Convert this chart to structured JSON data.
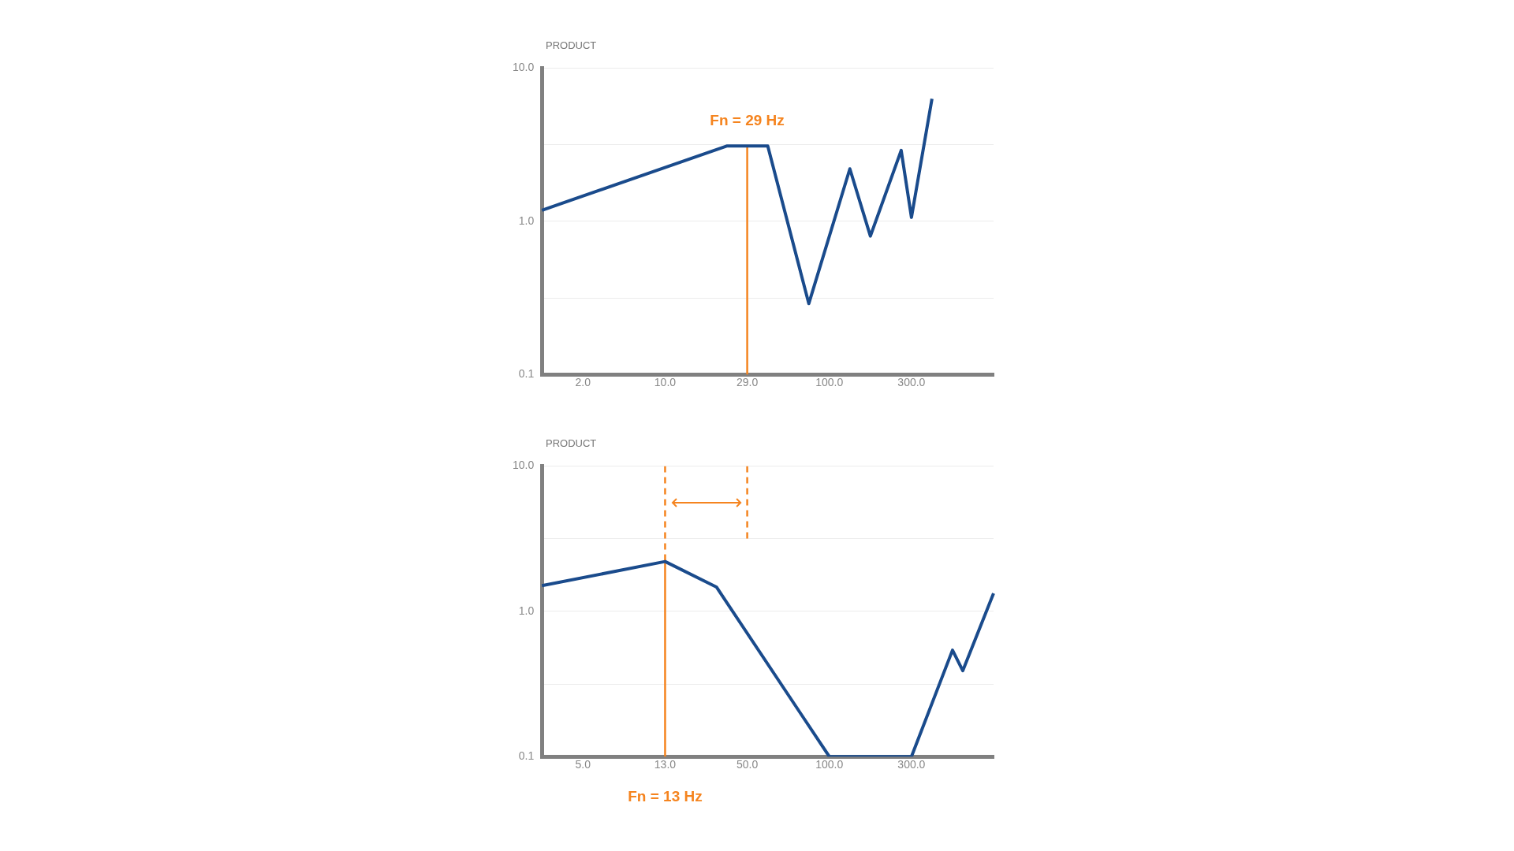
{
  "chart_data": [
    {
      "type": "line",
      "ylabel": "PRODUCT",
      "categories": [
        null,
        null,
        null,
        null,
        "2.0",
        null,
        null,
        null,
        null,
        null,
        null,
        null,
        "10.0",
        null,
        null,
        null,
        null,
        null,
        null,
        null,
        "29.0",
        null,
        null,
        null,
        null,
        null,
        null,
        null,
        "100.0",
        null,
        null,
        null,
        null,
        null,
        null,
        null,
        "300.0",
        null,
        null,
        null,
        null,
        null,
        null,
        null,
        null
      ],
      "series": [
        {
          "color": "#1a4b8c",
          "values": [
            1.18,
            null,
            null,
            null,
            null,
            null,
            null,
            null,
            null,
            null,
            null,
            null,
            null,
            null,
            null,
            null,
            null,
            null,
            3.1,
            null,
            null,
            null,
            3.1,
            null,
            null,
            null,
            0.29,
            null,
            null,
            null,
            2.2,
            null,
            0.8,
            null,
            null,
            2.9,
            1.06,
            null,
            6.3,
            null,
            null,
            null,
            null,
            null,
            null
          ]
        },
        {
          "color": "#f5841f",
          "x": [
            "29.0",
            "29.0"
          ],
          "values": [
            3.1,
            0.1
          ],
          "line_style": "solid"
        }
      ],
      "ylim": [
        0.1,
        10
      ],
      "yticks": [
        {
          "value": 0.1,
          "label": "0.1"
        },
        {
          "value": 0.316,
          "label": null
        },
        {
          "value": 1,
          "label": "1.0"
        },
        {
          "value": 3.16,
          "label": null
        },
        {
          "value": 10,
          "label": "10.0"
        }
      ],
      "log": "y",
      "grid": "y",
      "annotations": [
        "Fn = 29 Hz"
      ]
    },
    {
      "type": "line",
      "ylabel": "PRODUCT",
      "categories": [
        null,
        null,
        null,
        null,
        "5.0",
        null,
        null,
        null,
        null,
        null,
        null,
        null,
        "13.0",
        null,
        null,
        null,
        null,
        null,
        null,
        null,
        "50.0",
        null,
        null,
        null,
        null,
        null,
        null,
        null,
        "100.0",
        null,
        null,
        null,
        null,
        null,
        null,
        null,
        "300.0",
        null,
        null,
        null,
        null,
        null,
        null,
        null,
        null
      ],
      "series": [
        {
          "color": "#1a4b8c",
          "values": [
            1.5,
            null,
            null,
            null,
            null,
            null,
            null,
            null,
            null,
            null,
            null,
            null,
            2.2,
            null,
            null,
            null,
            null,
            1.47,
            null,
            null,
            null,
            null,
            null,
            null,
            null,
            null,
            null,
            null,
            0.1,
            null,
            null,
            null,
            null,
            null,
            null,
            null,
            0.1,
            null,
            null,
            null,
            0.54,
            0.39,
            null,
            null,
            1.33
          ]
        },
        {
          "color": "#f5841f",
          "x": [
            "13.0",
            "13.0"
          ],
          "values": [
            10,
            2.2
          ],
          "line_style": "dashed"
        },
        {
          "color": "#f5841f",
          "x": [
            "13.0",
            "13.0"
          ],
          "values": [
            2.2,
            0.1
          ],
          "line_style": "solid"
        },
        {
          "color": "#f5841f",
          "x": [
            "50.0",
            "50.0"
          ],
          "values": [
            10,
            3.16
          ],
          "line_style": "dashed"
        }
      ],
      "ylim": [
        0.1,
        10
      ],
      "yticks": [
        {
          "value": 0.1,
          "label": "0.1"
        },
        {
          "value": 0.316,
          "label": null
        },
        {
          "value": 1,
          "label": "1.0"
        },
        {
          "value": 3.16,
          "label": null
        },
        {
          "value": 10,
          "label": "10.0"
        }
      ],
      "log": "y",
      "grid": "y",
      "annotations": [
        "Fn = 13 Hz"
      ]
    }
  ]
}
